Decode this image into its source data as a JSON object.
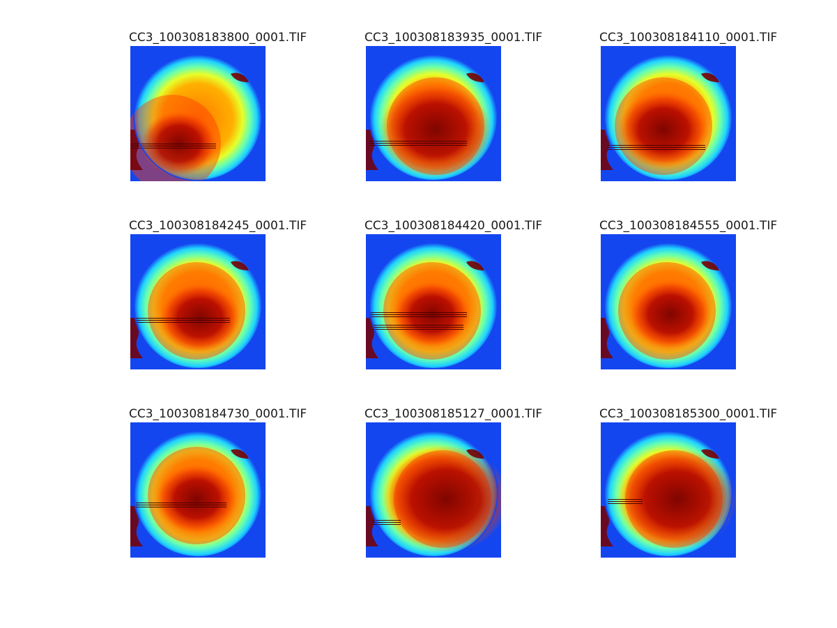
{
  "figure": {
    "background": "#ffffff",
    "image_background_color": "#1446f0",
    "colormap": "jet",
    "panels": [
      {
        "title": "CC3_100308183800_0001.TIF",
        "variant": "v1"
      },
      {
        "title": "CC3_100308183935_0001.TIF",
        "variant": "v2"
      },
      {
        "title": "CC3_100308184110_0001.TIF",
        "variant": "v3"
      },
      {
        "title": "CC3_100308184245_0001.TIF",
        "variant": "v4"
      },
      {
        "title": "CC3_100308184420_0001.TIF",
        "variant": "v5"
      },
      {
        "title": "CC3_100308184555_0001.TIF",
        "variant": "v6"
      },
      {
        "title": "CC3_100308184730_0001.TIF",
        "variant": "v7"
      },
      {
        "title": "CC3_100308185127_0001.TIF",
        "variant": "v8"
      },
      {
        "title": "CC3_100308185300_0001.TIF",
        "variant": "v9"
      }
    ]
  }
}
